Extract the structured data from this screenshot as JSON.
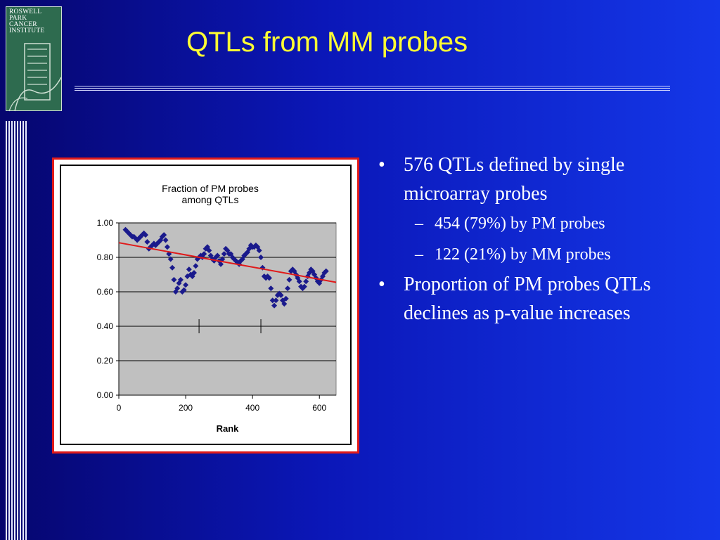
{
  "logo": {
    "text": "ROSWELL\nPARK\nCANCER\nINSTITUTE"
  },
  "title": "QTLs from MM probes",
  "bullets": [
    {
      "text": "576 QTLs defined by single microarray probes",
      "level": 1
    },
    {
      "text": "454 (79%) by PM probes",
      "level": 2
    },
    {
      "text": "122 (21%) by MM probes",
      "level": 2
    },
    {
      "text": "Proportion of PM probes QTLs declines as p-value increases",
      "level": 1
    }
  ],
  "chart_data": {
    "type": "scatter",
    "title": "Fraction of PM probes among QTLs",
    "xlabel": "Rank",
    "ylabel": "",
    "xlim": [
      0,
      650
    ],
    "ylim": [
      0,
      1.0
    ],
    "xticks": [
      "0",
      "200",
      "400",
      "600"
    ],
    "yticks": [
      "0.00",
      "0.20",
      "0.40",
      "0.60",
      "0.80",
      "1.00"
    ],
    "grid": true,
    "legend": "none",
    "point_color": "#1a1a8c",
    "trend_color": "#e01a1a",
    "series": [
      {
        "x": [
          20,
          25,
          30,
          35,
          40,
          45,
          50,
          55,
          60,
          65,
          70,
          75,
          80,
          85,
          90,
          95,
          100,
          105,
          110,
          115,
          120,
          125,
          130,
          135,
          140,
          145,
          150,
          155,
          160,
          165,
          170,
          175,
          180,
          185,
          190,
          195,
          200,
          205,
          210,
          215,
          220,
          225,
          230,
          235,
          240,
          245,
          250,
          255,
          260,
          265,
          270,
          275,
          280,
          285,
          290,
          295,
          300,
          305,
          310,
          315,
          320,
          325,
          330,
          335,
          340,
          345,
          350,
          355,
          360,
          365,
          370,
          375,
          380,
          385,
          390,
          395,
          400,
          405,
          410,
          415,
          420,
          425,
          430,
          435,
          440,
          445,
          450,
          455,
          460,
          465,
          470,
          475,
          480,
          485,
          490,
          495,
          500,
          505,
          510,
          515,
          520,
          525,
          530,
          535,
          540,
          545,
          550,
          555,
          560,
          565,
          570,
          575,
          580,
          585,
          590,
          595,
          600,
          605,
          610,
          615,
          620
        ],
        "y": [
          0.96,
          0.95,
          0.94,
          0.93,
          0.92,
          0.92,
          0.91,
          0.9,
          0.91,
          0.92,
          0.93,
          0.94,
          0.93,
          0.89,
          0.85,
          0.86,
          0.87,
          0.88,
          0.87,
          0.88,
          0.89,
          0.9,
          0.92,
          0.93,
          0.9,
          0.86,
          0.82,
          0.79,
          0.74,
          0.67,
          0.6,
          0.62,
          0.65,
          0.67,
          0.6,
          0.61,
          0.64,
          0.69,
          0.73,
          0.7,
          0.69,
          0.71,
          0.75,
          0.79,
          0.8,
          0.81,
          0.8,
          0.82,
          0.85,
          0.86,
          0.84,
          0.81,
          0.79,
          0.78,
          0.8,
          0.81,
          0.78,
          0.76,
          0.79,
          0.82,
          0.85,
          0.84,
          0.82,
          0.82,
          0.8,
          0.79,
          0.78,
          0.77,
          0.76,
          0.78,
          0.79,
          0.81,
          0.82,
          0.83,
          0.85,
          0.87,
          0.86,
          0.86,
          0.87,
          0.86,
          0.84,
          0.8,
          0.74,
          0.69,
          0.68,
          0.69,
          0.68,
          0.62,
          0.55,
          0.52,
          0.55,
          0.58,
          0.59,
          0.58,
          0.55,
          0.53,
          0.56,
          0.62,
          0.67,
          0.72,
          0.73,
          0.72,
          0.7,
          0.68,
          0.66,
          0.63,
          0.62,
          0.63,
          0.66,
          0.69,
          0.71,
          0.73,
          0.72,
          0.7,
          0.68,
          0.66,
          0.65,
          0.67,
          0.69,
          0.71,
          0.72
        ],
        "note_markers_x": [
          240,
          425
        ]
      }
    ],
    "trendline": {
      "x": [
        0,
        650
      ],
      "y": [
        0.885,
        0.655
      ]
    }
  }
}
